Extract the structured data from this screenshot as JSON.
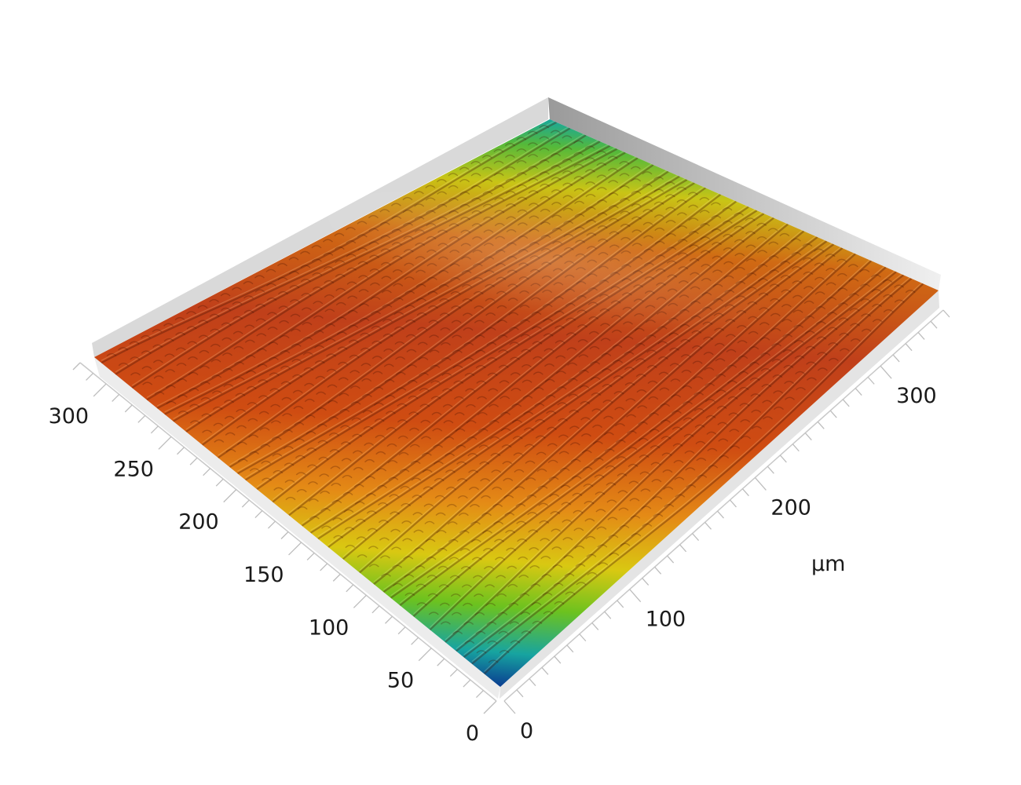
{
  "chart_data": {
    "type": "heatmap",
    "title": "",
    "left_axis": {
      "label": "",
      "ticks": [
        {
          "value": 0,
          "text": "0"
        },
        {
          "value": 50,
          "text": "50"
        },
        {
          "value": 100,
          "text": "100"
        },
        {
          "value": 150,
          "text": "150"
        },
        {
          "value": 200,
          "text": "200"
        },
        {
          "value": 250,
          "text": "250"
        },
        {
          "value": 300,
          "text": "300"
        }
      ],
      "range": [
        0,
        320
      ]
    },
    "right_axis": {
      "label": "µm",
      "ticks": [
        {
          "value": 0,
          "text": "0"
        },
        {
          "value": 100,
          "text": "100"
        },
        {
          "value": 200,
          "text": "200"
        },
        {
          "value": 300,
          "text": "300"
        }
      ],
      "range": [
        0,
        350
      ]
    },
    "colormap": [
      "#0a3d91",
      "#15a6a0",
      "#6cc21f",
      "#d8c810",
      "#e58a17",
      "#cf4a12",
      "#b93a1a"
    ],
    "ridge_count": 34,
    "grid": false,
    "legend": "none"
  }
}
